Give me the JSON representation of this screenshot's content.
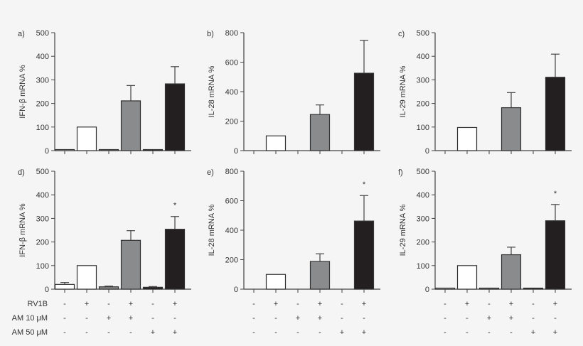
{
  "chart_data": [
    {
      "type": "bar",
      "panel_label": "a)",
      "ylabel": "IFN-β mRNA %",
      "ylim": [
        0,
        500
      ],
      "yticks": [
        0,
        100,
        200,
        300,
        400,
        500
      ],
      "values": [
        3,
        100,
        3,
        211,
        4,
        283
      ],
      "errors": [
        0,
        0,
        0,
        65,
        0,
        73
      ],
      "significance": [
        "",
        "",
        "",
        "",
        "",
        ""
      ]
    },
    {
      "type": "bar",
      "panel_label": "b)",
      "ylabel": "IL-28 mRNA %",
      "ylim": [
        0,
        800
      ],
      "yticks": [
        0,
        200,
        400,
        600,
        800
      ],
      "values": [
        null,
        100,
        null,
        245,
        null,
        525
      ],
      "errors": [
        0,
        0,
        0,
        65,
        0,
        223
      ],
      "significance": [
        "",
        "",
        "",
        "",
        "",
        ""
      ]
    },
    {
      "type": "bar",
      "panel_label": "c)",
      "ylabel": "IL-29 mRNA %",
      "ylim": [
        0,
        500
      ],
      "yticks": [
        0,
        100,
        200,
        300,
        400,
        500
      ],
      "values": [
        null,
        98,
        null,
        182,
        null,
        311
      ],
      "errors": [
        0,
        0,
        0,
        64,
        0,
        98
      ],
      "significance": [
        "",
        "",
        "",
        "",
        "",
        ""
      ]
    },
    {
      "type": "bar",
      "panel_label": "d)",
      "ylabel": "IFN-β mRNA %",
      "ylim": [
        0,
        500
      ],
      "yticks": [
        0,
        100,
        200,
        300,
        400,
        500
      ],
      "values": [
        20,
        100,
        10,
        207,
        8,
        254
      ],
      "errors": [
        8,
        0,
        3,
        41,
        3,
        54
      ],
      "significance": [
        "",
        "",
        "",
        "",
        "",
        "*"
      ]
    },
    {
      "type": "bar",
      "panel_label": "e)",
      "ylabel": "IL-28 mRNA %",
      "ylim": [
        0,
        800
      ],
      "yticks": [
        0,
        200,
        400,
        600,
        800
      ],
      "values": [
        null,
        100,
        null,
        188,
        null,
        462
      ],
      "errors": [
        0,
        0,
        0,
        52,
        0,
        173
      ],
      "significance": [
        "",
        "",
        "",
        "",
        "",
        "*"
      ]
    },
    {
      "type": "bar",
      "panel_label": "f)",
      "ylabel": "IL-29 mRNA %",
      "ylim": [
        0,
        500
      ],
      "yticks": [
        0,
        100,
        200,
        300,
        400,
        500
      ],
      "values": [
        2,
        100,
        1,
        146,
        1,
        290
      ],
      "errors": [
        0,
        0,
        0,
        32,
        0,
        69
      ],
      "significance": [
        "",
        "",
        "",
        "",
        "",
        "*"
      ]
    }
  ],
  "bar_colors": [
    "#ffffff",
    "#ffffff",
    "#8a8b8d",
    "#8a8b8d",
    "#231f20",
    "#231f20"
  ],
  "conditions": {
    "labels": [
      "RV1B",
      "AM 10 μM",
      "AM 50 μM"
    ],
    "rows": [
      [
        "-",
        "+",
        "-",
        "+",
        "-",
        "+"
      ],
      [
        "-",
        "-",
        "+",
        "+",
        "-",
        "-"
      ],
      [
        "-",
        "-",
        "-",
        "-",
        "+",
        "+"
      ]
    ]
  }
}
